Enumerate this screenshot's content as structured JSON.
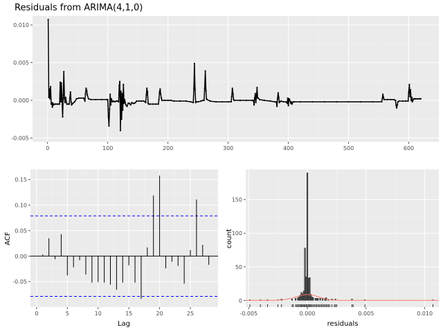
{
  "chart_data": [
    {
      "type": "line",
      "title": "Residuals from ARIMA(4,1,0)",
      "xlabel": "",
      "ylabel": "",
      "xlim": [
        -25,
        650
      ],
      "ylim": [
        -0.0055,
        0.0112
      ],
      "x_ticks": [
        0,
        100,
        200,
        300,
        400,
        500,
        600
      ],
      "y_ticks": [
        -0.005,
        0.0,
        0.005,
        0.01
      ],
      "y_tick_labels": [
        "-0.005",
        "0.000",
        "0.005",
        "0.010"
      ],
      "points": [
        [
          1,
          0.0107
        ],
        [
          2,
          0.0004
        ],
        [
          3,
          0.0015
        ],
        [
          4,
          0.0002
        ],
        [
          5,
          0.0018
        ],
        [
          6,
          -0.0005
        ],
        [
          7,
          -0.0003
        ],
        [
          8,
          -0.0009
        ],
        [
          9,
          -0.0004
        ],
        [
          10,
          -0.0006
        ],
        [
          12,
          -0.0005
        ],
        [
          14,
          -0.0005
        ],
        [
          16,
          -0.0005
        ],
        [
          18,
          -0.0005
        ],
        [
          20,
          -0.0005
        ],
        [
          21,
          0.0024
        ],
        [
          22,
          -0.0002
        ],
        [
          23,
          0.0023
        ],
        [
          24,
          0.0001
        ],
        [
          25,
          -0.0022
        ],
        [
          26,
          0.0007
        ],
        [
          27,
          0.0038
        ],
        [
          28,
          0.0003
        ],
        [
          29,
          -0.0003
        ],
        [
          30,
          0.0004
        ],
        [
          32,
          -0.0005
        ],
        [
          34,
          -0.0005
        ],
        [
          36,
          -0.0005
        ],
        [
          37,
          0.0003
        ],
        [
          38,
          0.0011
        ],
        [
          39,
          -0.0002
        ],
        [
          40,
          -0.0006
        ],
        [
          42,
          -0.0004
        ],
        [
          45,
          -0.0002
        ],
        [
          48,
          0.0002
        ],
        [
          52,
          0.0003
        ],
        [
          56,
          0.0003
        ],
        [
          60,
          0.0003
        ],
        [
          62,
          -0.0001
        ],
        [
          63,
          0.0009
        ],
        [
          64,
          0.0016
        ],
        [
          65,
          0.0013
        ],
        [
          66,
          0.0007
        ],
        [
          68,
          0.0002
        ],
        [
          72,
          0.0001
        ],
        [
          80,
          0.0001
        ],
        [
          90,
          0.0001
        ],
        [
          98,
          0.0001
        ],
        [
          100,
          0.0001
        ],
        [
          101,
          -0.0022
        ],
        [
          102,
          -0.0034
        ],
        [
          103,
          -0.0012
        ],
        [
          104,
          0.0008
        ],
        [
          105,
          -0.0006
        ],
        [
          106,
          0.0002
        ],
        [
          108,
          -0.0002
        ],
        [
          110,
          -0.0001
        ],
        [
          112,
          -0.0002
        ],
        [
          114,
          -0.0001
        ],
        [
          116,
          -0.0001
        ],
        [
          118,
          -0.0002
        ],
        [
          119,
          0.0019
        ],
        [
          120,
          0.0025
        ],
        [
          121,
          -0.004
        ],
        [
          122,
          0.0012
        ],
        [
          123,
          -0.0025
        ],
        [
          124,
          0.0009
        ],
        [
          125,
          -0.0013
        ],
        [
          126,
          0.0021
        ],
        [
          127,
          -0.0004
        ],
        [
          128,
          0.0001
        ],
        [
          130,
          -0.0006
        ],
        [
          132,
          -0.0008
        ],
        [
          134,
          -0.0004
        ],
        [
          136,
          -0.0004
        ],
        [
          138,
          -0.0006
        ],
        [
          140,
          -0.0003
        ],
        [
          142,
          -0.0004
        ],
        [
          144,
          -0.0004
        ],
        [
          146,
          -0.0003
        ],
        [
          148,
          -0.0001
        ],
        [
          152,
          -0.0001
        ],
        [
          156,
          -0.0001
        ],
        [
          160,
          -0.0001
        ],
        [
          163,
          -0.0003
        ],
        [
          164,
          0.0007
        ],
        [
          165,
          0.0016
        ],
        [
          166,
          0.0011
        ],
        [
          167,
          -0.0004
        ],
        [
          168,
          -0.0005
        ],
        [
          170,
          -0.0005
        ],
        [
          175,
          -0.0005
        ],
        [
          180,
          -0.0005
        ],
        [
          184,
          -0.0005
        ],
        [
          185,
          0.0001
        ],
        [
          186,
          0.0011
        ],
        [
          187,
          0.0015
        ],
        [
          188,
          0.0008
        ],
        [
          189,
          0.0003
        ],
        [
          190,
          0.0
        ],
        [
          195,
          0.0
        ],
        [
          200,
          0.0
        ],
        [
          205,
          0.0
        ],
        [
          210,
          -0.0001
        ],
        [
          220,
          -0.0001
        ],
        [
          230,
          -0.0001
        ],
        [
          238,
          -0.0002
        ],
        [
          242,
          -0.0003
        ],
        [
          243,
          0.0016
        ],
        [
          244,
          0.0049
        ],
        [
          245,
          0.0014
        ],
        [
          246,
          -0.0003
        ],
        [
          247,
          -0.0002
        ],
        [
          250,
          -0.0002
        ],
        [
          255,
          -0.0001
        ],
        [
          258,
          0.0
        ],
        [
          260,
          0.0
        ],
        [
          261,
          0.0016
        ],
        [
          262,
          0.0039
        ],
        [
          263,
          0.0013
        ],
        [
          264,
          0.0002
        ],
        [
          265,
          0.0001
        ],
        [
          270,
          -0.0001
        ],
        [
          280,
          -0.0002
        ],
        [
          290,
          -0.0002
        ],
        [
          300,
          -0.0002
        ],
        [
          305,
          -0.0002
        ],
        [
          306,
          0.0005
        ],
        [
          307,
          0.0016
        ],
        [
          308,
          0.0009
        ],
        [
          309,
          0.0001
        ],
        [
          310,
          0.0
        ],
        [
          320,
          0.0
        ],
        [
          330,
          0.0
        ],
        [
          340,
          0.0
        ],
        [
          342,
          0.0
        ],
        [
          343,
          -0.0006
        ],
        [
          344,
          0.0003
        ],
        [
          345,
          0.0009
        ],
        [
          346,
          -0.0003
        ],
        [
          347,
          0.0005
        ],
        [
          348,
          0.0017
        ],
        [
          349,
          0.0003
        ],
        [
          350,
          0.0003
        ],
        [
          352,
          0.0001
        ],
        [
          360,
          0.0
        ],
        [
          370,
          -0.0001
        ],
        [
          378,
          -0.0002
        ],
        [
          380,
          -0.0002
        ],
        [
          381,
          -0.0008
        ],
        [
          382,
          0.0002
        ],
        [
          383,
          0.001
        ],
        [
          384,
          0.0004
        ],
        [
          385,
          -0.0003
        ],
        [
          386,
          -0.0002
        ],
        [
          388,
          -0.0001
        ],
        [
          392,
          -0.0002
        ],
        [
          396,
          -0.0002
        ],
        [
          398,
          -0.0004
        ],
        [
          399,
          0.0003
        ],
        [
          400,
          -0.0007
        ],
        [
          401,
          0.0002
        ],
        [
          402,
          0.0001
        ],
        [
          404,
          -0.0004
        ],
        [
          405,
          -0.0002
        ],
        [
          406,
          -0.0005
        ],
        [
          408,
          -0.0002
        ],
        [
          410,
          -0.0002
        ],
        [
          420,
          -0.0002
        ],
        [
          440,
          -0.0002
        ],
        [
          460,
          -0.0002
        ],
        [
          480,
          -0.0002
        ],
        [
          500,
          -0.0002
        ],
        [
          520,
          -0.0002
        ],
        [
          540,
          -0.0002
        ],
        [
          555,
          -0.0002
        ],
        [
          556,
          0.0002
        ],
        [
          557,
          0.0008
        ],
        [
          558,
          0.0004
        ],
        [
          559,
          0.0001
        ],
        [
          560,
          0.0001
        ],
        [
          565,
          0.0001
        ],
        [
          570,
          0.0001
        ],
        [
          575,
          0.0001
        ],
        [
          578,
          0.0
        ],
        [
          579,
          -0.0007
        ],
        [
          580,
          -0.001
        ],
        [
          581,
          -0.0006
        ],
        [
          582,
          -0.0002
        ],
        [
          584,
          -0.0001
        ],
        [
          590,
          -0.0001
        ],
        [
          595,
          -0.0001
        ],
        [
          599,
          -0.0001
        ],
        [
          600,
          0.0011
        ],
        [
          601,
          0.0021
        ],
        [
          602,
          0.0005
        ],
        [
          603,
          0.0014
        ],
        [
          604,
          0.0
        ],
        [
          605,
          0.0004
        ],
        [
          606,
          -0.0002
        ],
        [
          607,
          0.0
        ],
        [
          608,
          0.0002
        ],
        [
          610,
          0.0002
        ],
        [
          612,
          0.0002
        ],
        [
          615,
          0.0002
        ],
        [
          618,
          0.0002
        ],
        [
          620,
          0.0002
        ]
      ]
    },
    {
      "type": "bar",
      "title": "",
      "xlabel": "Lag",
      "ylabel": "ACF",
      "xlim": [
        -1,
        29.5
      ],
      "ylim": [
        -0.1,
        0.17
      ],
      "x_ticks": [
        0,
        5,
        10,
        15,
        20,
        25
      ],
      "y_ticks": [
        -0.05,
        0.0,
        0.05,
        0.1,
        0.15
      ],
      "y_tick_labels": [
        "-0.05",
        "0.00",
        "0.05",
        "0.10",
        "0.15"
      ],
      "confidence_bounds": [
        0.079,
        -0.079
      ],
      "lags": [
        1,
        2,
        3,
        4,
        5,
        6,
        7,
        8,
        9,
        10,
        11,
        12,
        13,
        14,
        15,
        16,
        17,
        18,
        19,
        20,
        21,
        22,
        23,
        24,
        25,
        26,
        27,
        28
      ],
      "values": [
        0.003,
        0.035,
        -0.006,
        0.043,
        -0.038,
        -0.022,
        -0.008,
        -0.036,
        -0.052,
        -0.051,
        -0.052,
        -0.056,
        -0.066,
        -0.052,
        -0.018,
        -0.052,
        -0.084,
        0.017,
        0.119,
        0.158,
        -0.024,
        -0.011,
        -0.019,
        -0.054,
        0.012,
        0.111,
        0.022,
        -0.017
      ]
    },
    {
      "type": "histogram",
      "title": "",
      "xlabel": "residuals",
      "ylabel": "count",
      "xlim": [
        -0.00525,
        0.0112
      ],
      "ylim": [
        -10,
        195
      ],
      "x_ticks": [
        -0.005,
        0.0,
        0.005,
        0.01
      ],
      "x_tick_labels": [
        "-0.005",
        "0.000",
        "0.005",
        "0.010"
      ],
      "y_ticks": [
        0,
        50,
        100,
        150
      ],
      "y_tick_labels": [
        "0",
        "50",
        "100",
        "150"
      ],
      "bins": [
        [
          -0.0049,
          1
        ],
        [
          -0.004,
          1
        ],
        [
          -0.0034,
          1
        ],
        [
          -0.0025,
          1
        ],
        [
          -0.0022,
          2
        ],
        [
          -0.0013,
          2
        ],
        [
          -0.001,
          3
        ],
        [
          -0.0008,
          4
        ],
        [
          -0.0007,
          5
        ],
        [
          -0.0006,
          8
        ],
        [
          -0.0005,
          12
        ],
        [
          -0.0004,
          10
        ],
        [
          -0.0003,
          14
        ],
        [
          -0.0002,
          78
        ],
        [
          -0.0001,
          35
        ],
        [
          0.0,
          190
        ],
        [
          0.0001,
          33
        ],
        [
          0.0002,
          34
        ],
        [
          0.0003,
          9
        ],
        [
          0.0004,
          5
        ],
        [
          0.0005,
          4
        ],
        [
          0.0007,
          3
        ],
        [
          0.0008,
          3
        ],
        [
          0.0009,
          3
        ],
        [
          0.0011,
          3
        ],
        [
          0.0013,
          3
        ],
        [
          0.0015,
          3
        ],
        [
          0.0016,
          4
        ],
        [
          0.0018,
          1
        ],
        [
          0.0021,
          2
        ],
        [
          0.0024,
          2
        ],
        [
          0.0038,
          2
        ],
        [
          0.0049,
          1
        ],
        [
          0.0107,
          1
        ]
      ],
      "normal_curve": {
        "mean": 0.0,
        "sd": 0.00095,
        "color": "#f8766d"
      },
      "rug": [
        -0.0049,
        -0.004,
        -0.0034,
        -0.0025,
        -0.0022,
        -0.0013,
        -0.0012,
        -0.001,
        -0.0009,
        -0.0008,
        -0.0008,
        -0.0007,
        -0.0006,
        -0.0006,
        -0.0005,
        -0.0005,
        -0.0004,
        -0.0004,
        -0.0003,
        -0.0003,
        -0.0002,
        -0.0002,
        -0.0001,
        -0.0001,
        0.0,
        0.0,
        0.0001,
        0.0001,
        0.0002,
        0.0002,
        0.0003,
        0.0003,
        0.0004,
        0.0005,
        0.0006,
        0.0007,
        0.0008,
        0.0009,
        0.001,
        0.0011,
        0.0012,
        0.0013,
        0.0014,
        0.0015,
        0.0016,
        0.0017,
        0.0018,
        0.0019,
        0.0021,
        0.0023,
        0.0024,
        0.0025,
        0.0038,
        0.0039,
        0.0049,
        0.0107
      ]
    }
  ]
}
